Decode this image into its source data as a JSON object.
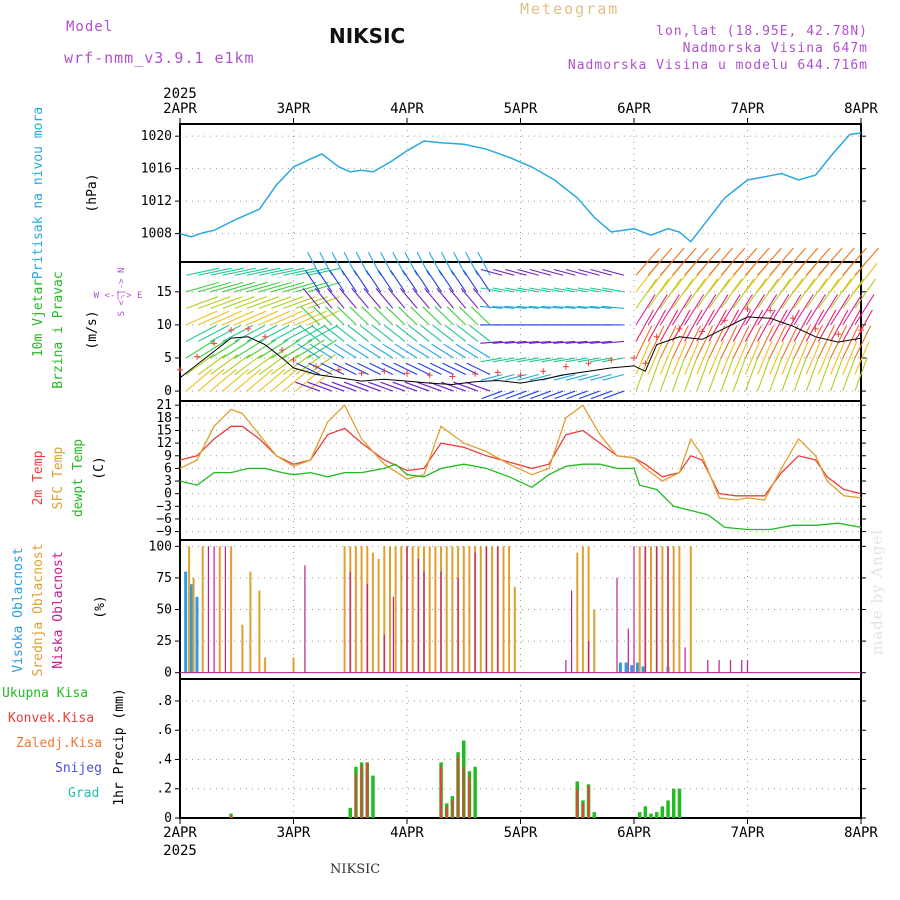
{
  "header": {
    "model_label": "Model",
    "model_value": "wrf-nmm_v3.9.1  e1km",
    "title": "NIKSIC",
    "meteogram": "Meteogram",
    "coords": "lon,lat (18.95E, 42.78N)",
    "elevation": "Nadmorska Visina 647m",
    "model_elevation": "Nadmorska Visina u modelu 644.716m",
    "footer": "NIKSIC",
    "watermark": "made by Angel",
    "year_top": "2025",
    "year_bottom": "2025"
  },
  "colors": {
    "pressure": "#2aa8e0",
    "wind_label": "#22bb22",
    "temp2m": "#e8403a",
    "sfc_temp": "#e0a030",
    "dewpt": "#22bb22",
    "high_cloud": "#2a9ce0",
    "mid_cloud": "#e0a030",
    "low_cloud": "#c02090",
    "total_precip": "#22bb22",
    "conv_precip": "#e8403a",
    "frozen_precip": "#f07830",
    "snow": "#5050e0",
    "hail": "#20c0b0",
    "header_purple": "#b050d0",
    "meteogram_gold": "#e0c080",
    "grid": "#999999"
  },
  "chart_data": [
    {
      "type": "line",
      "panel": "pressure",
      "ylabel_main": "Pritisak na nivou mora",
      "ylabel_unit": "(hPa)",
      "x_labels": [
        "2APR",
        "3APR",
        "4APR",
        "5APR",
        "6APR",
        "7APR",
        "8APR"
      ],
      "ylim": [
        1004.5,
        1021.5
      ],
      "yticks": [
        1008,
        1012,
        1016,
        1020
      ],
      "series": [
        {
          "x": [
            0,
            0.1,
            0.2,
            0.3,
            0.5,
            0.7,
            0.85,
            1.0,
            1.15,
            1.25,
            1.4,
            1.5,
            1.6,
            1.7,
            1.85,
            2.0,
            2.15,
            2.3,
            2.5,
            2.7,
            2.9,
            3.1,
            3.3,
            3.5,
            3.65,
            3.8,
            4.0,
            4.15,
            4.3,
            4.4,
            4.5,
            4.6,
            4.8,
            5.0,
            5.15,
            5.3,
            5.45,
            5.6,
            5.75,
            5.9,
            6.0
          ],
          "y": [
            1008,
            1007.6,
            1008.1,
            1008.4,
            1009.8,
            1011.0,
            1014.0,
            1016.2,
            1017.2,
            1017.8,
            1016.2,
            1015.6,
            1015.8,
            1015.6,
            1016.8,
            1018.2,
            1019.4,
            1019.2,
            1019.0,
            1018.4,
            1017.4,
            1016.2,
            1014.6,
            1012.4,
            1010.0,
            1008.2,
            1008.6,
            1007.8,
            1008.6,
            1008.2,
            1007.0,
            1008.8,
            1012.4,
            1014.6,
            1015.0,
            1015.4,
            1014.6,
            1015.2,
            1017.8,
            1020.2,
            1020.4
          ]
        }
      ]
    },
    {
      "type": "line",
      "panel": "wind",
      "ylabel_main": "10m Vjetar",
      "ylabel_main2": "Brzina i Pravac",
      "ylabel_unit": "(m/s)",
      "compass": "W <-|-> E",
      "compass_v": "S <-|-> N",
      "ylim": [
        -1.5,
        19.5
      ],
      "yticks": [
        0,
        5,
        10,
        15
      ],
      "series": [
        {
          "name": "speed",
          "x": [
            0,
            0.15,
            0.3,
            0.45,
            0.6,
            0.75,
            0.9,
            1.0,
            1.2,
            1.4,
            1.6,
            1.8,
            2.0,
            2.2,
            2.4,
            2.6,
            2.8,
            3.0,
            3.2,
            3.4,
            3.6,
            3.8,
            4.0,
            4.1,
            4.2,
            4.4,
            4.6,
            4.8,
            5.0,
            5.2,
            5.4,
            5.6,
            5.8,
            6.0
          ],
          "y": [
            2,
            4,
            6,
            8,
            8.2,
            7,
            5,
            3.5,
            2.5,
            2,
            1.5,
            1.8,
            1.5,
            1.2,
            1,
            1.4,
            1.6,
            1.2,
            1.8,
            2.5,
            3,
            3.5,
            3.8,
            3.0,
            7.0,
            8.2,
            7.8,
            9.5,
            11.2,
            11.0,
            9.8,
            8.2,
            7.4,
            8.0
          ]
        }
      ]
    },
    {
      "type": "line",
      "panel": "temperature",
      "ylabel_lines": [
        "2m Temp",
        "SFC Temp",
        "dewpt Temp"
      ],
      "ylabel_unit": "(C)",
      "ylim": [
        -11,
        22
      ],
      "yticks": [
        -9,
        -6,
        -3,
        0,
        3,
        6,
        9,
        12,
        15,
        18,
        21
      ],
      "series": [
        {
          "name": "2m Temp",
          "x": [
            0,
            0.15,
            0.3,
            0.45,
            0.55,
            0.7,
            0.85,
            1.0,
            1.15,
            1.3,
            1.45,
            1.6,
            1.8,
            2.0,
            2.15,
            2.3,
            2.5,
            2.7,
            2.9,
            3.1,
            3.25,
            3.4,
            3.55,
            3.7,
            3.85,
            4.0,
            4.1,
            4.25,
            4.4,
            4.5,
            4.6,
            4.75,
            4.9,
            5.0,
            5.15,
            5.3,
            5.45,
            5.6,
            5.7,
            5.85,
            6.0
          ],
          "y": [
            8,
            9,
            13,
            16,
            16,
            13,
            9,
            7,
            8,
            14,
            15.5,
            12,
            8,
            5.5,
            6,
            12,
            11,
            9,
            7.5,
            6,
            7,
            14,
            15,
            12,
            9,
            8.5,
            7,
            4,
            5,
            9,
            8,
            0,
            -0.5,
            -0.5,
            -0.5,
            5,
            9,
            8,
            4,
            1,
            0
          ]
        },
        {
          "name": "SFC Temp",
          "x": [
            0,
            0.15,
            0.3,
            0.45,
            0.55,
            0.7,
            0.85,
            1.0,
            1.15,
            1.3,
            1.45,
            1.6,
            1.8,
            2.0,
            2.15,
            2.3,
            2.5,
            2.7,
            2.9,
            3.1,
            3.25,
            3.4,
            3.55,
            3.7,
            3.85,
            4.0,
            4.1,
            4.25,
            4.4,
            4.5,
            4.6,
            4.75,
            4.9,
            5.0,
            5.15,
            5.3,
            5.45,
            5.6,
            5.7,
            5.85,
            6.0
          ],
          "y": [
            6,
            8,
            16,
            20,
            19,
            14,
            9,
            6.5,
            8,
            17,
            21,
            13,
            7,
            3.5,
            4.5,
            16,
            12,
            10,
            7,
            4.5,
            6,
            18,
            21,
            14,
            9,
            8.5,
            6,
            3,
            5,
            13,
            9,
            -1,
            -1.5,
            -1,
            -1.5,
            6,
            13,
            9,
            3,
            -0.5,
            -1
          ]
        },
        {
          "name": "dewpt Temp",
          "x": [
            0,
            0.15,
            0.3,
            0.45,
            0.6,
            0.75,
            0.9,
            1.0,
            1.15,
            1.3,
            1.45,
            1.6,
            1.8,
            1.9,
            2.0,
            2.15,
            2.3,
            2.5,
            2.7,
            2.9,
            3.1,
            3.25,
            3.4,
            3.55,
            3.7,
            3.85,
            4.0,
            4.05,
            4.2,
            4.35,
            4.5,
            4.65,
            4.8,
            5.0,
            5.2,
            5.4,
            5.6,
            5.8,
            6.0
          ],
          "y": [
            3,
            2,
            5,
            5,
            6,
            6,
            5,
            4.5,
            5,
            4,
            5,
            5,
            6,
            7,
            4.5,
            4,
            6,
            7,
            6,
            4,
            1.5,
            4.5,
            6.5,
            7,
            7,
            6,
            6,
            2,
            1,
            -3,
            -4,
            -5,
            -8,
            -8.5,
            -8.5,
            -7.5,
            -7.5,
            -7,
            -8
          ]
        }
      ]
    },
    {
      "type": "bar",
      "panel": "cloud",
      "ylabel_lines": [
        "Visoka Oblacnost",
        "Srednja Oblacnost",
        "Niska Oblacnost"
      ],
      "ylabel_unit": "(%)",
      "ylim": [
        -5,
        105
      ],
      "yticks": [
        0,
        25,
        50,
        75,
        100
      ],
      "series": [
        {
          "name": "Visoka Oblacnost",
          "x": [
            0.05,
            0.1,
            0.15,
            3.88,
            3.93,
            3.98,
            4.03,
            4.08,
            4.3
          ],
          "y": [
            80,
            70,
            60,
            8,
            8,
            6,
            8,
            5,
            5
          ]
        },
        {
          "name": "Srednja Oblacnost",
          "x": [
            0.08,
            0.12,
            0.2,
            0.35,
            0.45,
            0.55,
            0.62,
            0.7,
            0.75,
            1.0,
            1.45,
            1.5,
            1.55,
            1.6,
            1.65,
            1.7,
            1.75,
            1.8,
            1.85,
            1.9,
            1.95,
            2.0,
            2.05,
            2.1,
            2.15,
            2.2,
            2.25,
            2.3,
            2.35,
            2.4,
            2.45,
            2.5,
            2.55,
            2.6,
            2.65,
            2.7,
            2.75,
            2.8,
            2.85,
            2.9,
            2.95,
            3.5,
            3.55,
            3.6,
            3.65,
            4.05,
            4.1,
            4.15,
            4.2,
            4.25,
            4.3,
            4.35,
            4.4,
            4.5
          ],
          "y": [
            100,
            75,
            100,
            100,
            100,
            38,
            80,
            65,
            12,
            12,
            100,
            100,
            100,
            100,
            100,
            95,
            90,
            100,
            100,
            100,
            100,
            100,
            100,
            100,
            100,
            100,
            100,
            100,
            100,
            100,
            100,
            100,
            100,
            100,
            100,
            100,
            100,
            100,
            100,
            100,
            68,
            95,
            100,
            100,
            50,
            100,
            100,
            100,
            100,
            100,
            100,
            100,
            100,
            100
          ]
        },
        {
          "name": "Niska Oblacnost",
          "x": [
            0.25,
            0.3,
            0.4,
            1.1,
            1.5,
            1.65,
            1.8,
            1.88,
            2.0,
            2.1,
            2.15,
            2.3,
            2.45,
            2.6,
            2.7,
            2.8,
            3.4,
            3.45,
            3.6,
            3.85,
            3.95,
            4.0,
            4.1,
            4.2,
            4.3,
            4.45,
            4.65,
            4.75,
            4.85,
            4.95,
            5.0
          ],
          "y": [
            100,
            100,
            100,
            85,
            80,
            70,
            30,
            60,
            100,
            90,
            80,
            80,
            75,
            95,
            100,
            100,
            10,
            65,
            25,
            75,
            35,
            100,
            100,
            100,
            100,
            20,
            10,
            10,
            10,
            10,
            10
          ]
        }
      ]
    },
    {
      "type": "bar",
      "panel": "precip",
      "ylabel_lines": [
        "Ukupna Kisa",
        "Konvek.Kisa",
        "Zaledj.Kisa",
        "Snijeg",
        "Grad"
      ],
      "ylabel_unit": "1hr Precip (mm)",
      "ylim": [
        0,
        0.95
      ],
      "yticks": [
        0,
        0.2,
        0.4,
        0.6,
        0.8
      ],
      "series": [
        {
          "name": "Ukupna Kisa",
          "x": [
            0.45,
            1.5,
            1.55,
            1.6,
            1.65,
            1.7,
            2.3,
            2.35,
            2.4,
            2.45,
            2.5,
            2.55,
            2.6,
            3.5,
            3.55,
            3.6,
            3.65,
            4.05,
            4.1,
            4.15,
            4.2,
            4.25,
            4.3,
            4.35,
            4.4
          ],
          "y": [
            0.03,
            0.07,
            0.35,
            0.38,
            0.38,
            0.29,
            0.38,
            0.1,
            0.15,
            0.45,
            0.53,
            0.32,
            0.35,
            0.25,
            0.12,
            0.23,
            0.04,
            0.04,
            0.08,
            0.03,
            0.04,
            0.08,
            0.12,
            0.2,
            0.2
          ]
        },
        {
          "name": "Konvek.Kisa",
          "x": [
            0.45,
            1.55,
            1.6,
            1.65,
            2.3,
            2.35,
            2.4,
            2.45,
            2.5,
            2.55,
            3.5,
            3.55,
            3.6
          ],
          "y": [
            0.02,
            0.3,
            0.36,
            0.38,
            0.35,
            0.08,
            0.12,
            0.42,
            0.35,
            0.28,
            0.2,
            0.1,
            0.22
          ]
        }
      ]
    }
  ]
}
